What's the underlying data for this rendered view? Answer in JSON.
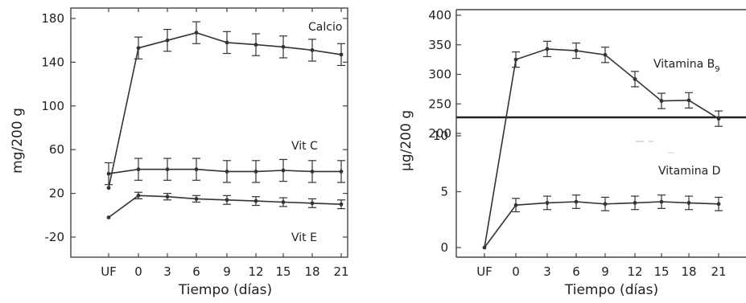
{
  "chart_data": [
    {
      "type": "line",
      "xlabel": "Tiempo (días)",
      "ylabel": "mg/200 g",
      "x_ticks": [
        "UF",
        "0",
        "3",
        "6",
        "9",
        "12",
        "15",
        "18",
        "21"
      ],
      "y_ticks": [
        "-20",
        "20",
        "60",
        "100",
        "140",
        "180"
      ],
      "ylim": [
        -30,
        190
      ],
      "grid": false,
      "series": [
        {
          "name": "Calcio",
          "x": [
            "UF",
            0,
            3,
            6,
            9,
            12,
            15,
            18,
            21
          ],
          "values": [
            25,
            153,
            160,
            167,
            158,
            156,
            154,
            151,
            147
          ],
          "errors": [
            0,
            10,
            10,
            10,
            10,
            10,
            10,
            10,
            10
          ]
        },
        {
          "name": "Vit C",
          "x": [
            "UF",
            0,
            3,
            6,
            9,
            12,
            15,
            18,
            21
          ],
          "values": [
            38,
            42,
            42,
            42,
            40,
            40,
            41,
            40,
            40
          ],
          "errors": [
            10,
            10,
            10,
            10,
            10,
            10,
            10,
            10,
            10
          ]
        },
        {
          "name": "Vit E",
          "x": [
            "UF",
            0,
            3,
            6,
            9,
            12,
            15,
            18,
            21
          ],
          "values": [
            -2,
            18,
            17,
            15,
            14,
            13,
            12,
            11,
            10
          ],
          "errors": [
            0,
            3,
            3,
            3,
            4,
            4,
            4,
            4,
            4
          ]
        }
      ]
    },
    {
      "type": "line",
      "xlabel": "Tiempo (días)",
      "ylabel": "µg/200 g",
      "x_ticks": [
        "UF",
        "0",
        "3",
        "6",
        "9",
        "12",
        "15",
        "18",
        "21"
      ],
      "y_ticks_upper": [
        "200",
        "250",
        "300",
        "350",
        "400"
      ],
      "y_ticks_lower": [
        "0",
        "5",
        "10"
      ],
      "ylim_upper": [
        180,
        410
      ],
      "ylim_lower": [
        -1,
        11
      ],
      "grid": false,
      "series": [
        {
          "name": "Vitamina B",
          "name_subscript": "9",
          "x": [
            0,
            3,
            6,
            9,
            12,
            15,
            18,
            21
          ],
          "values": [
            325,
            343,
            340,
            333,
            292,
            255,
            256,
            225
          ],
          "errors": [
            13,
            13,
            13,
            13,
            13,
            13,
            13,
            13
          ]
        },
        {
          "name": "Vitamina D",
          "x": [
            "UF",
            0,
            3,
            6,
            9,
            12,
            15,
            18,
            21
          ],
          "values": [
            0,
            3.8,
            4.0,
            4.1,
            3.9,
            4.0,
            4.1,
            4.0,
            3.9
          ],
          "errors": [
            0,
            0.6,
            0.6,
            0.6,
            0.6,
            0.6,
            0.6,
            0.6,
            0.6
          ]
        }
      ]
    }
  ]
}
